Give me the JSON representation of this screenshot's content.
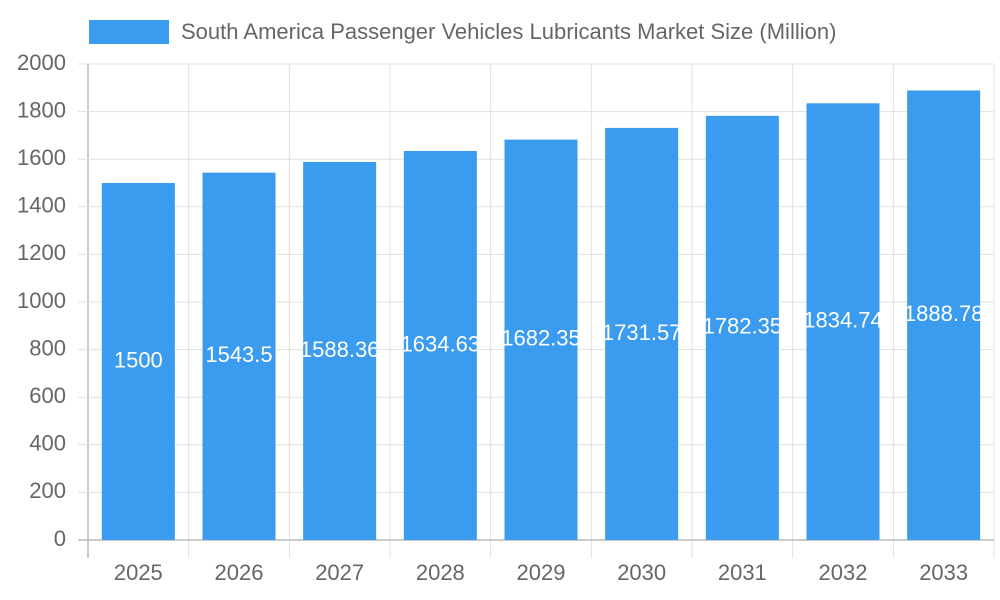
{
  "chart_data": {
    "type": "bar",
    "legend_label": "South America Passenger Vehicles Lubricants Market Size (Million)",
    "categories": [
      "2025",
      "2026",
      "2027",
      "2028",
      "2029",
      "2030",
      "2031",
      "2032",
      "2033"
    ],
    "values": [
      1500,
      1543.5,
      1588.36,
      1634.63,
      1682.35,
      1731.57,
      1782.35,
      1834.74,
      1888.78
    ],
    "color": "#3a9bef",
    "ylim": [
      0,
      2000
    ],
    "yticks": [
      0,
      200,
      400,
      600,
      800,
      1000,
      1200,
      1400,
      1600,
      1800,
      2000
    ],
    "grid": true
  }
}
